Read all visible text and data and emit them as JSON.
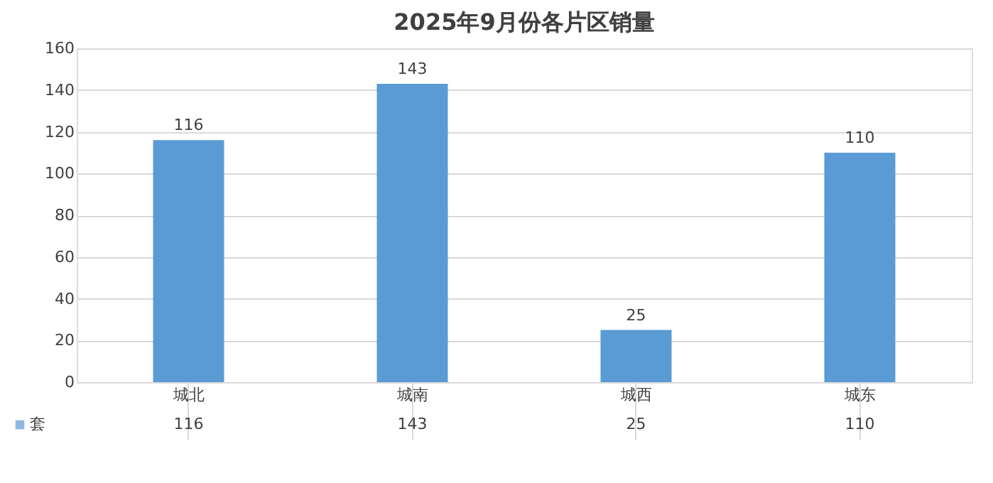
{
  "chart_data": {
    "type": "bar",
    "title": "2025年9月份各片区销量",
    "categories": [
      "城北",
      "城南",
      "城西",
      "城东"
    ],
    "series": [
      {
        "name": "套",
        "color": "#5b9bd5",
        "values": [
          116,
          143,
          25,
          110
        ]
      }
    ],
    "annotations": [
      "116",
      "143",
      "25",
      "110"
    ],
    "ylim": [
      0,
      160
    ],
    "yticks": [
      0,
      20,
      40,
      60,
      80,
      100,
      120,
      140,
      160
    ],
    "grid": "y",
    "data_labels": true,
    "legend": "bottom left"
  }
}
